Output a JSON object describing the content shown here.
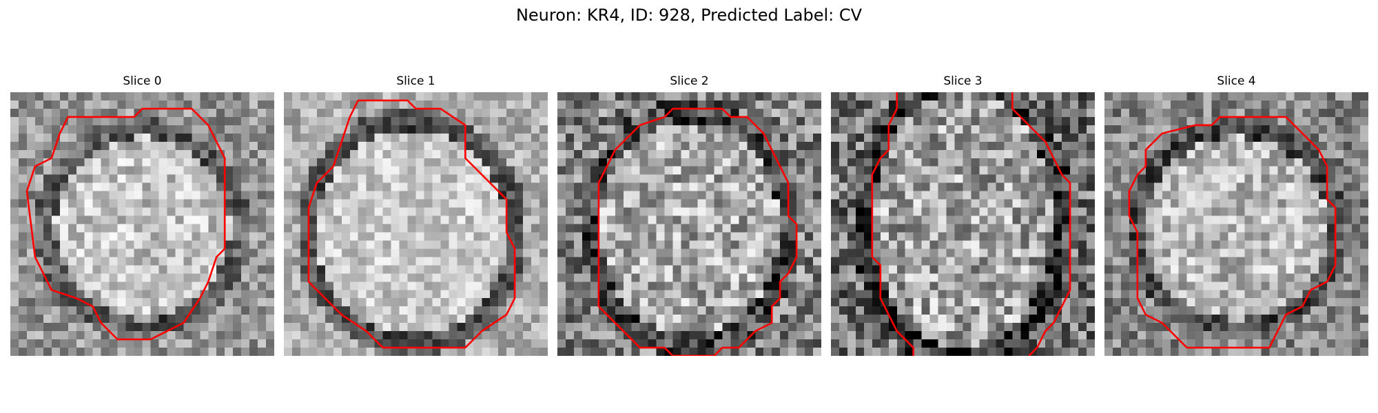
{
  "figure": {
    "title": "Neuron: KR4, ID: 928, Predicted Label: CV"
  },
  "colors": {
    "contour": "#ff0000",
    "background": "#ffffff"
  },
  "slices": [
    {
      "title": "Slice 0"
    },
    {
      "title": "Slice 1"
    },
    {
      "title": "Slice 2"
    },
    {
      "title": "Slice 3"
    },
    {
      "title": "Slice 4"
    }
  ]
}
